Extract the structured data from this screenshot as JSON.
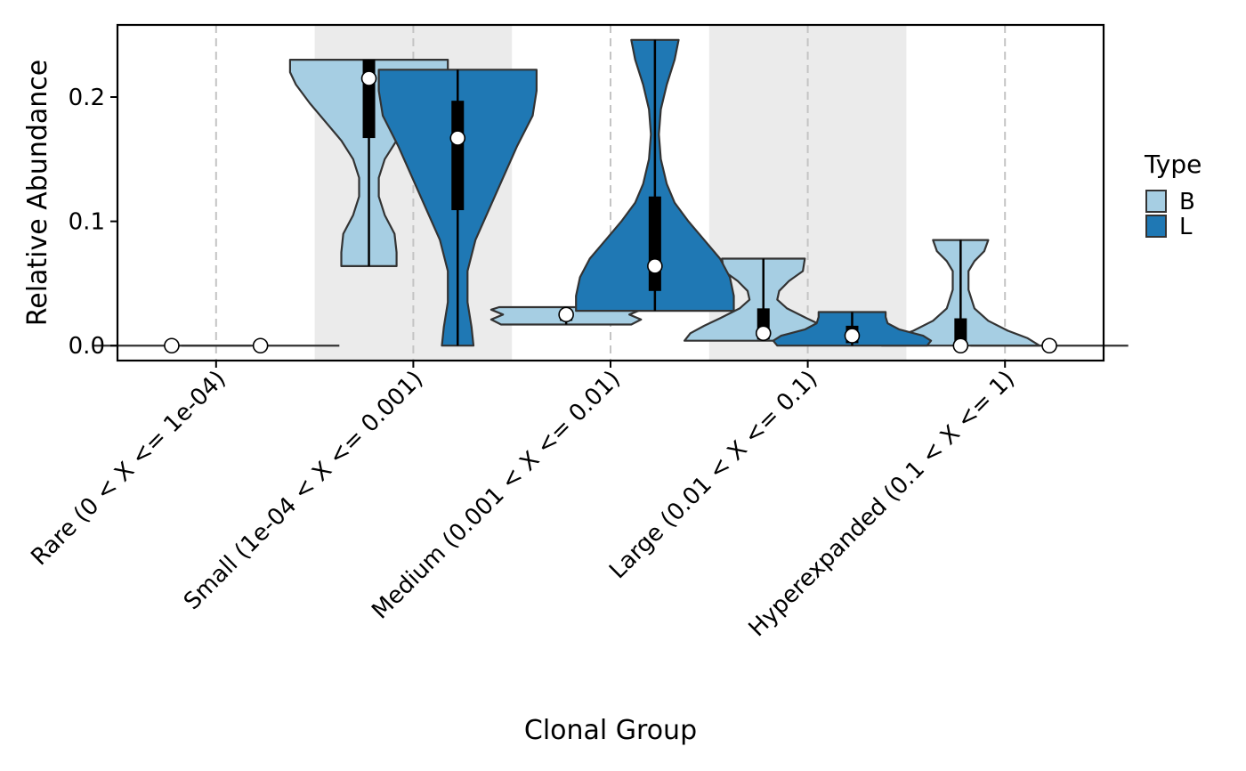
{
  "chart_data": {
    "type": "violin",
    "xlabel": "Clonal Group",
    "ylabel": "Relative Abundance",
    "y_ticks": [
      "0.0",
      "0.1",
      "0.2"
    ],
    "y_tick_values": [
      0.0,
      0.1,
      0.2
    ],
    "ylim": [
      -0.012,
      0.258
    ],
    "categories": [
      "Rare (0 < X <= 1e-04)",
      "Small (1e-04 < X <= 0.001)",
      "Medium (0.001 < X <= 0.01)",
      "Large (0.01 < X <= 0.1)",
      "Hyperexpanded (0.1 < X <= 1)"
    ],
    "shaded_categories": [
      1,
      3
    ],
    "legend": {
      "title": "Type",
      "position": "right",
      "items": [
        {
          "label": "B",
          "color": "#a6cee3"
        },
        {
          "label": "L",
          "color": "#1f78b4"
        }
      ]
    },
    "series": [
      {
        "name": "B",
        "color": "#a6cee3",
        "violins": [
          {
            "category": 0,
            "min": 0.0,
            "max": 0.0,
            "q1": 0.0,
            "q3": 0.0,
            "median": 0.0,
            "shape": [
              [
                0.0,
                0.4
              ]
            ]
          },
          {
            "category": 1,
            "min": 0.064,
            "max": 0.23,
            "q1": 0.167,
            "q3": 0.23,
            "median": 0.215,
            "shape": [
              [
                0.064,
                0.14
              ],
              [
                0.075,
                0.14
              ],
              [
                0.09,
                0.13
              ],
              [
                0.105,
                0.08
              ],
              [
                0.12,
                0.05
              ],
              [
                0.135,
                0.05
              ],
              [
                0.15,
                0.08
              ],
              [
                0.165,
                0.14
              ],
              [
                0.18,
                0.22
              ],
              [
                0.195,
                0.3
              ],
              [
                0.21,
                0.37
              ],
              [
                0.22,
                0.4
              ],
              [
                0.23,
                0.4
              ]
            ]
          },
          {
            "category": 2,
            "min": 0.017,
            "max": 0.031,
            "q1": 0.02,
            "q3": 0.029,
            "median": 0.025,
            "shape": [
              [
                0.017,
                0.33
              ],
              [
                0.021,
                0.38
              ],
              [
                0.025,
                0.32
              ],
              [
                0.029,
                0.38
              ],
              [
                0.031,
                0.34
              ]
            ]
          },
          {
            "category": 3,
            "min": 0.004,
            "max": 0.07,
            "q1": 0.005,
            "q3": 0.03,
            "median": 0.01,
            "shape": [
              [
                0.004,
                0.4
              ],
              [
                0.01,
                0.37
              ],
              [
                0.016,
                0.3
              ],
              [
                0.022,
                0.22
              ],
              [
                0.03,
                0.12
              ],
              [
                0.037,
                0.07
              ],
              [
                0.044,
                0.08
              ],
              [
                0.052,
                0.13
              ],
              [
                0.06,
                0.2
              ],
              [
                0.07,
                0.21
              ]
            ]
          },
          {
            "category": 4,
            "min": 0.0,
            "max": 0.085,
            "q1": 0.0,
            "q3": 0.022,
            "median": 0.0,
            "shape": [
              [
                0.0,
                0.4
              ],
              [
                0.006,
                0.34
              ],
              [
                0.012,
                0.24
              ],
              [
                0.02,
                0.14
              ],
              [
                0.03,
                0.07
              ],
              [
                0.045,
                0.04
              ],
              [
                0.06,
                0.04
              ],
              [
                0.068,
                0.07
              ],
              [
                0.076,
                0.12
              ],
              [
                0.085,
                0.14
              ]
            ]
          }
        ]
      },
      {
        "name": "L",
        "color": "#1f78b4",
        "violins": [
          {
            "category": 0,
            "min": 0.0,
            "max": 0.0,
            "q1": 0.0,
            "q3": 0.0,
            "median": 0.0,
            "shape": [
              [
                0.0,
                0.4
              ]
            ]
          },
          {
            "category": 1,
            "min": 0.0,
            "max": 0.222,
            "q1": 0.109,
            "q3": 0.197,
            "median": 0.167,
            "shape": [
              [
                0.0,
                0.08
              ],
              [
                0.015,
                0.07
              ],
              [
                0.035,
                0.05
              ],
              [
                0.06,
                0.05
              ],
              [
                0.085,
                0.09
              ],
              [
                0.11,
                0.16
              ],
              [
                0.135,
                0.23
              ],
              [
                0.16,
                0.3
              ],
              [
                0.185,
                0.38
              ],
              [
                0.205,
                0.4
              ],
              [
                0.222,
                0.4
              ]
            ]
          },
          {
            "category": 2,
            "min": 0.028,
            "max": 0.246,
            "q1": 0.044,
            "q3": 0.12,
            "median": 0.064,
            "shape": [
              [
                0.028,
                0.4
              ],
              [
                0.04,
                0.4
              ],
              [
                0.055,
                0.38
              ],
              [
                0.07,
                0.33
              ],
              [
                0.085,
                0.25
              ],
              [
                0.1,
                0.17
              ],
              [
                0.115,
                0.1
              ],
              [
                0.13,
                0.06
              ],
              [
                0.15,
                0.03
              ],
              [
                0.17,
                0.02
              ],
              [
                0.19,
                0.03
              ],
              [
                0.21,
                0.06
              ],
              [
                0.23,
                0.1
              ],
              [
                0.246,
                0.12
              ]
            ]
          },
          {
            "category": 3,
            "min": 0.0,
            "max": 0.027,
            "q1": 0.002,
            "q3": 0.016,
            "median": 0.008,
            "shape": [
              [
                0.0,
                0.38
              ],
              [
                0.004,
                0.4
              ],
              [
                0.008,
                0.36
              ],
              [
                0.013,
                0.24
              ],
              [
                0.018,
                0.18
              ],
              [
                0.023,
                0.17
              ],
              [
                0.027,
                0.17
              ]
            ]
          },
          {
            "category": 4,
            "min": 0.0,
            "max": 0.0,
            "q1": 0.0,
            "q3": 0.0,
            "median": 0.0,
            "shape": [
              [
                0.0,
                0.4
              ]
            ]
          }
        ]
      }
    ]
  }
}
